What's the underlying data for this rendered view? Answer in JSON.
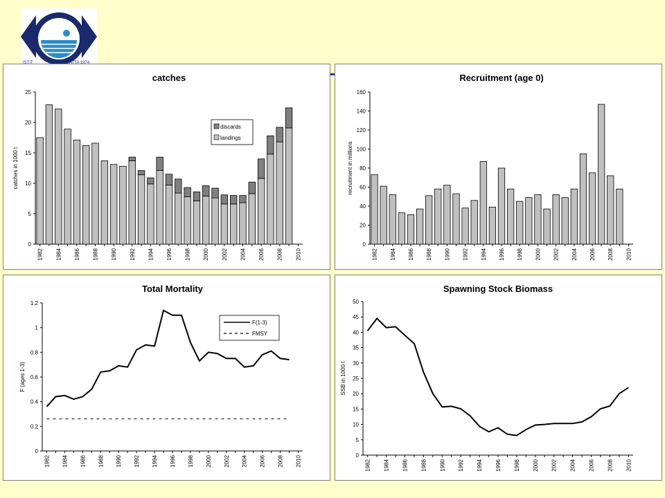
{
  "logo": {
    "text_left": "ISTIT",
    "text_right": "ATTA 1974"
  },
  "colors": {
    "background": "#ffffcc",
    "bar_fill": "#c0c0c0",
    "discards_fill": "#808080",
    "line": "#000000",
    "accent": "#1f3fa0"
  },
  "chart_data": [
    {
      "type": "bar",
      "title": "catches",
      "ylabel": "catches in 1000 t",
      "xlabel": "",
      "ylim": [
        0,
        25
      ],
      "yticks": [
        0,
        5,
        10,
        15,
        20,
        25
      ],
      "xlim": [
        1981.5,
        2010.5
      ],
      "xticks": [
        "1982",
        "1984",
        "1986",
        "1988",
        "1990",
        "1992",
        "1994",
        "1996",
        "1998",
        "2000",
        "2002",
        "2004",
        "2006",
        "2008",
        "2010"
      ],
      "stacked": true,
      "legend": "top-right",
      "categories": [
        1982,
        1983,
        1984,
        1985,
        1986,
        1987,
        1988,
        1989,
        1990,
        1991,
        1992,
        1993,
        1994,
        1995,
        1996,
        1997,
        1998,
        1999,
        2000,
        2001,
        2002,
        2003,
        2004,
        2005,
        2006,
        2007,
        2008,
        2009
      ],
      "series": [
        {
          "name": "landings",
          "values": [
            17.5,
            22.9,
            22.2,
            18.9,
            17.1,
            16.2,
            16.6,
            13.7,
            13.1,
            12.8,
            13.7,
            11.4,
            9.9,
            12.1,
            9.7,
            8.4,
            7.8,
            7.1,
            7.9,
            7.6,
            6.6,
            6.6,
            6.8,
            8.3,
            10.8,
            14.8,
            16.8,
            19.1
          ]
        },
        {
          "name": "discards",
          "values": [
            0,
            0,
            0,
            0,
            0,
            0,
            0,
            0,
            0,
            0,
            0.6,
            0.7,
            1.0,
            2.2,
            1.8,
            2.3,
            1.5,
            1.5,
            1.7,
            1.6,
            1.5,
            1.4,
            1.2,
            1.9,
            3.2,
            3.0,
            2.4,
            3.3
          ]
        }
      ]
    },
    {
      "type": "bar",
      "title": "Recruitment (age 0)",
      "ylabel": "recruitment in millions",
      "xlabel": "",
      "ylim": [
        0,
        160
      ],
      "yticks": [
        0,
        20,
        40,
        60,
        80,
        100,
        120,
        140,
        160
      ],
      "xlim": [
        1981.5,
        2010.5
      ],
      "xticks": [
        "1982",
        "1984",
        "1986",
        "1988",
        "1990",
        "1992",
        "1994",
        "1996",
        "1998",
        "2000",
        "2002",
        "2004",
        "2006",
        "2008",
        "2010"
      ],
      "categories": [
        1982,
        1983,
        1984,
        1985,
        1986,
        1987,
        1988,
        1989,
        1990,
        1991,
        1992,
        1993,
        1994,
        1995,
        1996,
        1997,
        1998,
        1999,
        2000,
        2001,
        2002,
        2003,
        2004,
        2005,
        2006,
        2007,
        2008,
        2009
      ],
      "series": [
        {
          "values": [
            73,
            61,
            52,
            33,
            31,
            37,
            51,
            58,
            62,
            53,
            38,
            46,
            87,
            39,
            80,
            58,
            45,
            49,
            52,
            37,
            52,
            49,
            58,
            95,
            75,
            147,
            72,
            58
          ]
        }
      ]
    },
    {
      "type": "line",
      "title": "Total Mortality",
      "ylabel": "F (ages 1-3)",
      "xlabel": "",
      "ylim": [
        0,
        1.2
      ],
      "yticks": [
        "0",
        "0.2",
        "0.4",
        "0.6",
        "0.8",
        "1",
        "1.2"
      ],
      "xlim": [
        1981.5,
        2010.5
      ],
      "xticks": [
        "1982",
        "1984",
        "1986",
        "1988",
        "1990",
        "1992",
        "1994",
        "1996",
        "1998",
        "2000",
        "2002",
        "2004",
        "2006",
        "2008",
        "2010"
      ],
      "legend": "top-right",
      "series": [
        {
          "name": "F(1-3)",
          "style": "solid",
          "x": [
            1982,
            1983,
            1984,
            1985,
            1986,
            1987,
            1988,
            1989,
            1990,
            1991,
            1992,
            1993,
            1994,
            1995,
            1996,
            1997,
            1998,
            1999,
            2000,
            2001,
            2002,
            2003,
            2004,
            2005,
            2006,
            2007,
            2008,
            2009
          ],
          "y": [
            0.36,
            0.44,
            0.45,
            0.42,
            0.44,
            0.5,
            0.64,
            0.65,
            0.69,
            0.68,
            0.82,
            0.86,
            0.85,
            1.14,
            1.1,
            1.1,
            0.88,
            0.73,
            0.8,
            0.79,
            0.75,
            0.75,
            0.68,
            0.69,
            0.78,
            0.81,
            0.75,
            0.74
          ]
        },
        {
          "name": "FMSY",
          "style": "dashed",
          "x": [
            1982,
            2009
          ],
          "y": [
            0.26,
            0.26
          ]
        }
      ]
    },
    {
      "type": "line",
      "title": "Spawning Stock Biomass",
      "ylabel": "SSB in 1000 t",
      "xlabel": "",
      "ylim": [
        0,
        50
      ],
      "yticks": [
        0,
        5,
        10,
        15,
        20,
        25,
        30,
        35,
        40,
        45,
        50
      ],
      "xlim": [
        1981.5,
        2010.5
      ],
      "xticks": [
        "1982",
        "1984",
        "1986",
        "1988",
        "1990",
        "1992",
        "1994",
        "1996",
        "1998",
        "2000",
        "2002",
        "2004",
        "2006",
        "2008",
        "2010"
      ],
      "series": [
        {
          "style": "solid",
          "x": [
            1982,
            1983,
            1984,
            1985,
            1986,
            1987,
            1988,
            1989,
            1990,
            1991,
            1992,
            1993,
            1994,
            1995,
            1996,
            1997,
            1998,
            1999,
            2000,
            2001,
            2002,
            2003,
            2004,
            2005,
            2006,
            2007,
            2008,
            2009,
            2010
          ],
          "y": [
            40.5,
            44.5,
            41.5,
            41.8,
            39,
            36.3,
            27,
            20,
            15.7,
            15.9,
            15.1,
            12.8,
            9.4,
            7.6,
            8.9,
            6.8,
            6.4,
            8.3,
            9.8,
            10,
            10.3,
            10.3,
            10.3,
            10.8,
            12.5,
            15.1,
            16,
            20,
            22
          ]
        }
      ]
    }
  ]
}
